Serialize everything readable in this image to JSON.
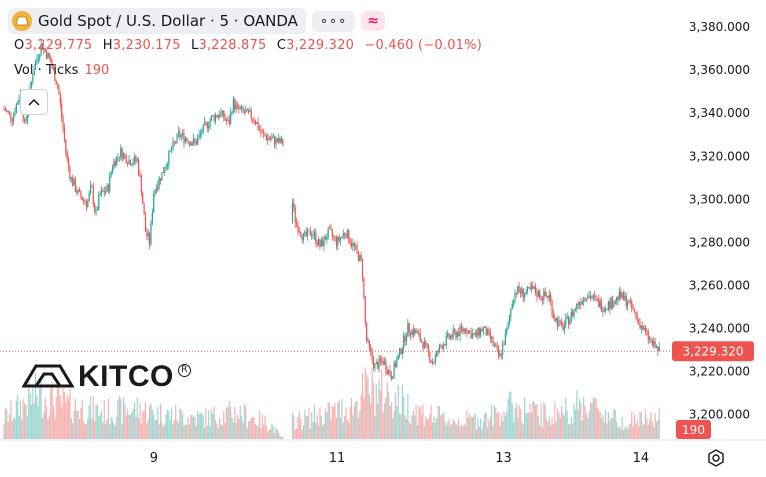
{
  "header": {
    "title": "Gold Spot / U.S. Dollar · 5 · OANDA",
    "more_glyph": "∘∘∘",
    "indicator_glyph": "≈"
  },
  "ohlc": {
    "o_label": "O",
    "o_value": "3,229.775",
    "h_label": "H",
    "h_value": "3,230.175",
    "l_label": "L",
    "l_value": "3,228.875",
    "c_label": "C",
    "c_value": "3,229.320",
    "change": "−0.460 (−0.01%)"
  },
  "volume": {
    "label": "Vol · Ticks",
    "value": "190"
  },
  "watermark": {
    "brand": "KITCO",
    "reg": "R"
  },
  "colors": {
    "up": "#26a69a",
    "down": "#ef5350",
    "gold": "#f0b23a"
  },
  "chart_data": {
    "type": "candlestick",
    "symbol": "Gold Spot / U.S. Dollar",
    "interval": "5",
    "source": "OANDA",
    "y_ticks": [
      "3,380.000",
      "3,360.000",
      "3,340.000",
      "3,320.000",
      "3,300.000",
      "3,280.000",
      "3,260.000",
      "3,240.000",
      "3,220.000",
      "3,200.000"
    ],
    "y_tick_values": [
      3380,
      3360,
      3340,
      3320,
      3300,
      3280,
      3260,
      3240,
      3220,
      3200
    ],
    "ylim": [
      3189,
      3388
    ],
    "x_ticks": [
      "9",
      "11",
      "13",
      "14"
    ],
    "x_tick_pos": [
      1.8,
      4.0,
      6.0,
      7.65
    ],
    "xlim": [
      0,
      8.0
    ],
    "last_price": "3,229.320",
    "last_price_value": 3229.32,
    "last_volume": "190",
    "price_path": [
      [
        0.0,
        3342
      ],
      [
        0.1,
        3338
      ],
      [
        0.2,
        3350
      ],
      [
        0.25,
        3333
      ],
      [
        0.35,
        3360
      ],
      [
        0.45,
        3372
      ],
      [
        0.55,
        3365
      ],
      [
        0.65,
        3352
      ],
      [
        0.75,
        3320
      ],
      [
        0.8,
        3310
      ],
      [
        0.9,
        3302
      ],
      [
        1.0,
        3298
      ],
      [
        1.05,
        3306
      ],
      [
        1.1,
        3292
      ],
      [
        1.15,
        3302
      ],
      [
        1.25,
        3305
      ],
      [
        1.3,
        3316
      ],
      [
        1.4,
        3322
      ],
      [
        1.5,
        3318
      ],
      [
        1.6,
        3318
      ],
      [
        1.65,
        3305
      ],
      [
        1.7,
        3285
      ],
      [
        1.75,
        3280
      ],
      [
        1.8,
        3304
      ],
      [
        1.9,
        3312
      ],
      [
        2.0,
        3322
      ],
      [
        2.1,
        3330
      ],
      [
        2.2,
        3328
      ],
      [
        2.3,
        3326
      ],
      [
        2.4,
        3333
      ],
      [
        2.5,
        3338
      ],
      [
        2.6,
        3340
      ],
      [
        2.7,
        3335
      ],
      [
        2.75,
        3345
      ],
      [
        2.8,
        3342
      ],
      [
        2.9,
        3340
      ],
      [
        3.0,
        3338
      ],
      [
        3.1,
        3330
      ],
      [
        3.2,
        3328
      ],
      [
        3.35,
        3326
      ],
      [
        3.5,
        3290
      ],
      [
        3.6,
        3282
      ],
      [
        3.7,
        3285
      ],
      [
        3.8,
        3278
      ],
      [
        3.9,
        3285
      ],
      [
        4.0,
        3280
      ],
      [
        4.1,
        3285
      ],
      [
        4.2,
        3278
      ],
      [
        4.3,
        3270
      ],
      [
        4.35,
        3235
      ],
      [
        4.45,
        3222
      ],
      [
        4.55,
        3225
      ],
      [
        4.65,
        3218
      ],
      [
        4.75,
        3228
      ],
      [
        4.85,
        3240
      ],
      [
        4.95,
        3238
      ],
      [
        5.05,
        3232
      ],
      [
        5.15,
        3224
      ],
      [
        5.25,
        3232
      ],
      [
        5.35,
        3236
      ],
      [
        5.45,
        3238
      ],
      [
        5.55,
        3240
      ],
      [
        5.65,
        3236
      ],
      [
        5.75,
        3240
      ],
      [
        5.85,
        3235
      ],
      [
        5.95,
        3226
      ],
      [
        6.05,
        3240
      ],
      [
        6.1,
        3252
      ],
      [
        6.15,
        3258
      ],
      [
        6.25,
        3256
      ],
      [
        6.35,
        3258
      ],
      [
        6.45,
        3255
      ],
      [
        6.55,
        3255
      ],
      [
        6.6,
        3246
      ],
      [
        6.7,
        3240
      ],
      [
        6.8,
        3245
      ],
      [
        6.9,
        3252
      ],
      [
        7.0,
        3256
      ],
      [
        7.1,
        3253
      ],
      [
        7.2,
        3250
      ],
      [
        7.3,
        3252
      ],
      [
        7.4,
        3255
      ],
      [
        7.5,
        3252
      ],
      [
        7.6,
        3245
      ],
      [
        7.7,
        3238
      ],
      [
        7.8,
        3232
      ],
      [
        7.88,
        3229.3
      ]
    ],
    "volume_profile": [
      [
        0.0,
        0.35
      ],
      [
        0.4,
        0.75
      ],
      [
        0.8,
        0.55
      ],
      [
        1.2,
        0.45
      ],
      [
        1.6,
        0.5
      ],
      [
        2.0,
        0.4
      ],
      [
        2.4,
        0.35
      ],
      [
        2.8,
        0.45
      ],
      [
        3.2,
        0.25
      ],
      [
        3.35,
        0.0
      ],
      [
        3.45,
        0.3
      ],
      [
        3.8,
        0.4
      ],
      [
        4.2,
        0.55
      ],
      [
        4.35,
        0.85
      ],
      [
        4.6,
        0.75
      ],
      [
        5.0,
        0.45
      ],
      [
        5.4,
        0.3
      ],
      [
        5.8,
        0.35
      ],
      [
        6.1,
        0.55
      ],
      [
        6.5,
        0.4
      ],
      [
        6.8,
        0.5
      ],
      [
        7.0,
        0.6
      ],
      [
        7.4,
        0.3
      ],
      [
        7.88,
        0.35
      ]
    ]
  }
}
